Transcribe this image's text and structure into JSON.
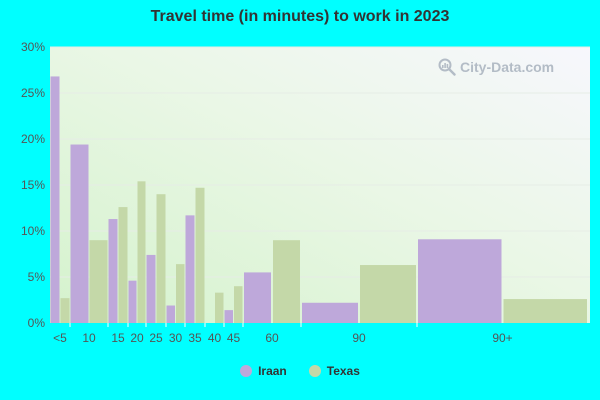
{
  "title": "Travel time (in minutes) to work in 2023",
  "watermark": "City-Data.com",
  "colors": {
    "iraan": "#bea8da",
    "texas": "#c4d8a8",
    "axis_text": "#555555",
    "page": "#00ffff"
  },
  "legend": [
    {
      "name": "Iraan",
      "color": "#bea8da"
    },
    {
      "name": "Texas",
      "color": "#c4d8a8"
    }
  ],
  "chart_data": {
    "type": "bar",
    "title": "Travel time (in minutes) to work in 2023",
    "xlabel": "",
    "ylabel": "",
    "ylim": [
      0,
      30
    ],
    "yticks": [
      "0%",
      "5%",
      "10%",
      "15%",
      "20%",
      "25%",
      "30%"
    ],
    "grid": true,
    "legend_position": "bottom",
    "categories": [
      "<5",
      "10",
      "15",
      "20",
      "25",
      "30",
      "35",
      "40",
      "45",
      "60",
      "90",
      "90+"
    ],
    "series": [
      {
        "name": "Iraan",
        "values": [
          26.8,
          19.4,
          11.3,
          4.6,
          7.4,
          1.9,
          11.7,
          0,
          1.4,
          5.5,
          2.2,
          9.1
        ]
      },
      {
        "name": "Texas",
        "values": [
          2.7,
          9.0,
          12.6,
          15.4,
          14.0,
          6.4,
          14.7,
          3.3,
          4.0,
          9.0,
          6.3,
          2.6
        ]
      }
    ]
  }
}
